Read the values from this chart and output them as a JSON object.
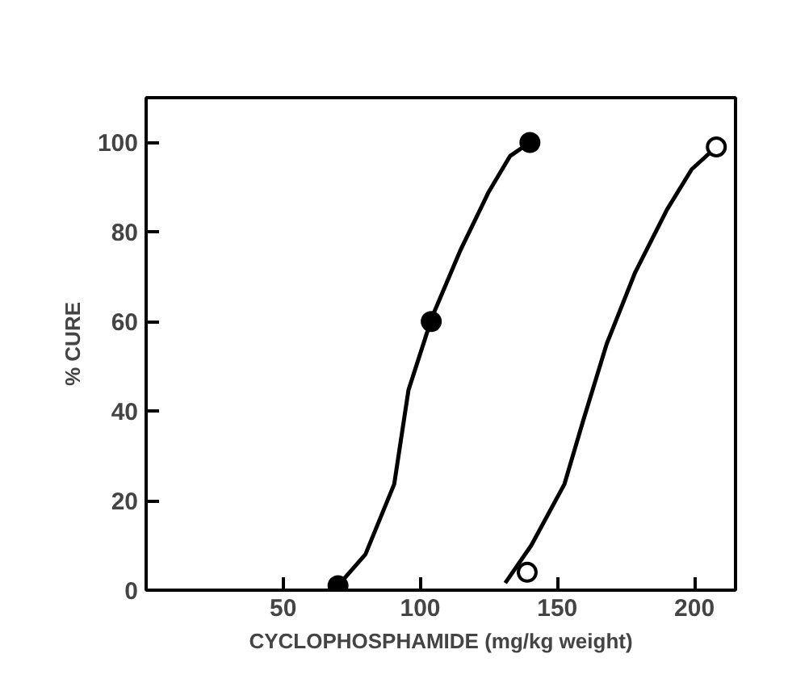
{
  "chart_data": {
    "type": "scatter",
    "xlabel": "CYCLOPHOSPHAMIDE (mg/kg weight)",
    "ylabel": "% CURE",
    "xlim": [
      0,
      215
    ],
    "ylim": [
      0,
      110
    ],
    "xticks": [
      50,
      100,
      150,
      200
    ],
    "yticks": [
      0,
      20,
      40,
      60,
      80,
      100
    ],
    "grid": false,
    "series": [
      {
        "type": "line",
        "color": "#000000",
        "marker": "none",
        "line_style": "solid",
        "x": [
          70,
          80,
          90.5,
          95.7,
          104.3,
          114.7,
          125,
          132.8,
          140
        ],
        "values": [
          1,
          8,
          23.7,
          44.7,
          61,
          76,
          89,
          97,
          100
        ]
      },
      {
        "type": "line",
        "color": "#000000",
        "marker": "none",
        "line_style": "solid",
        "x": [
          131,
          140.5,
          152.6,
          159.5,
          168,
          178.4,
          190,
          199,
          208
        ],
        "values": [
          1.6,
          10,
          23.7,
          38,
          55,
          71,
          85,
          94,
          99
        ]
      },
      {
        "color": "#000000",
        "marker": "circle",
        "x": [
          70,
          104,
          140
        ],
        "values": [
          1,
          60,
          100
        ]
      },
      {
        "color": "#ffffff",
        "marker": "circle",
        "x": [
          139,
          208
        ],
        "values": [
          4,
          99
        ]
      }
    ]
  }
}
